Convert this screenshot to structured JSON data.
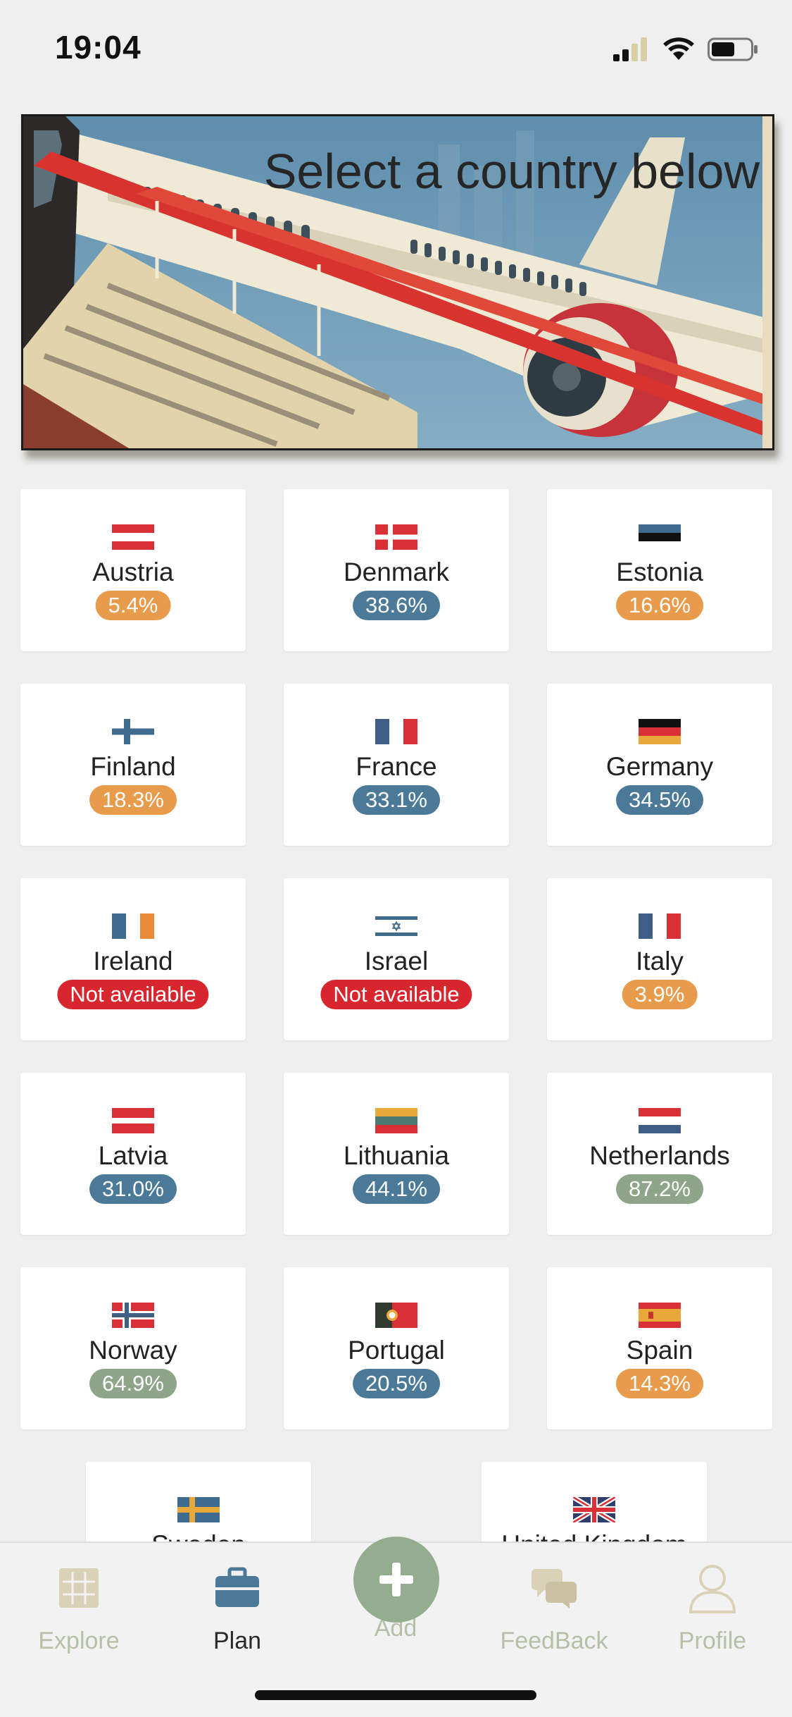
{
  "status_bar": {
    "time": "19:04",
    "battery_level": 0.55
  },
  "banner": {
    "title": "Select a country below"
  },
  "countries": [
    {
      "name": "Austria",
      "badge": "5.4%",
      "status": "low"
    },
    {
      "name": "Denmark",
      "badge": "38.6%",
      "status": "mid"
    },
    {
      "name": "Estonia",
      "badge": "16.6%",
      "status": "low"
    },
    {
      "name": "Finland",
      "badge": "18.3%",
      "status": "low"
    },
    {
      "name": "France",
      "badge": "33.1%",
      "status": "mid"
    },
    {
      "name": "Germany",
      "badge": "34.5%",
      "status": "mid"
    },
    {
      "name": "Ireland",
      "badge": "Not available",
      "status": "na"
    },
    {
      "name": "Israel",
      "badge": "Not available",
      "status": "na"
    },
    {
      "name": "Italy",
      "badge": "3.9%",
      "status": "low"
    },
    {
      "name": "Latvia",
      "badge": "31.0%",
      "status": "mid"
    },
    {
      "name": "Lithuania",
      "badge": "44.1%",
      "status": "mid"
    },
    {
      "name": "Netherlands",
      "badge": "87.2%",
      "status": "high"
    },
    {
      "name": "Norway",
      "badge": "64.9%",
      "status": "high"
    },
    {
      "name": "Portugal",
      "badge": "20.5%",
      "status": "mid"
    },
    {
      "name": "Spain",
      "badge": "14.3%",
      "status": "low"
    },
    {
      "name": "Sweden",
      "badge": "",
      "status": "partial"
    },
    {
      "name": "United Kingdom",
      "badge": "",
      "status": "partial"
    }
  ],
  "badge_colors": {
    "low": "#e89b4b",
    "mid": "#4b7a99",
    "high": "#8ea58a",
    "na": "#d8262f"
  },
  "tabbar": {
    "explore": {
      "label": "Explore",
      "icon": "grid-icon"
    },
    "plan": {
      "label": "Plan",
      "icon": "briefcase-icon"
    },
    "add": {
      "label": "Add",
      "icon": "plus-icon"
    },
    "feedback": {
      "label": "FeedBack",
      "icon": "chat-bubbles-icon"
    },
    "profile": {
      "label": "Profile",
      "icon": "user-icon"
    }
  },
  "active_tab": "plan"
}
